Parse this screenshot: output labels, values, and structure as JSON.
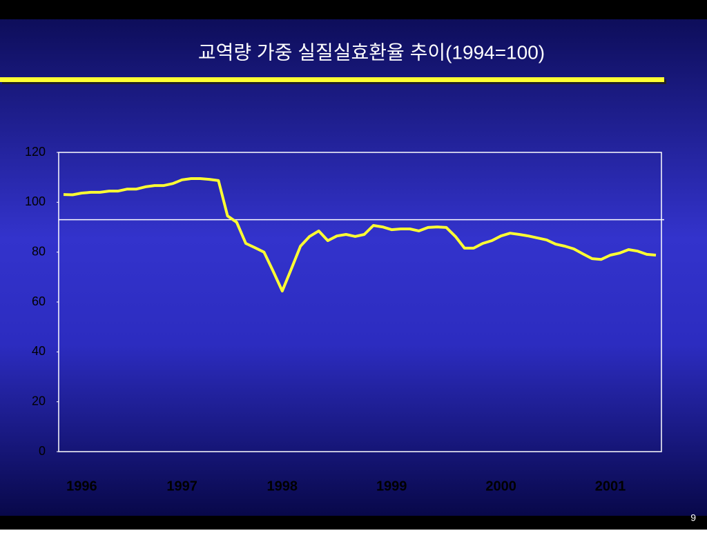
{
  "chart_data": {
    "type": "line",
    "title": "교역량 가중 실질실효환율 추이(1994=100)",
    "page_number": "9",
    "categories": [
      null,
      null,
      "1996",
      null,
      null,
      null,
      null,
      null,
      null,
      null,
      null,
      null,
      null,
      "1997",
      null,
      null,
      null,
      null,
      null,
      null,
      null,
      null,
      null,
      null,
      "1998",
      null,
      null,
      null,
      null,
      null,
      null,
      null,
      null,
      null,
      null,
      null,
      "1999",
      null,
      null,
      null,
      null,
      null,
      null,
      null,
      null,
      null,
      null,
      null,
      "2000",
      null,
      null,
      null,
      null,
      null,
      null,
      null,
      null,
      null,
      null,
      null,
      "2001",
      null,
      null,
      null,
      null,
      null
    ],
    "series": [
      {
        "color": "#ffff33",
        "values": [
          103.1,
          103,
          103.7,
          104,
          104,
          104.5,
          104.5,
          105.3,
          105.3,
          106.2,
          106.7,
          106.7,
          107.5,
          109,
          109.5,
          109.5,
          109.2,
          108.7,
          94.5,
          92,
          83.5,
          81.8,
          80,
          72.4,
          64.4,
          73.3,
          82.4,
          86.3,
          88.5,
          84.6,
          86.5,
          87.1,
          86.3,
          87.1,
          90.7,
          90.1,
          89,
          89.3,
          89.3,
          88.5,
          89.9,
          90.1,
          89.9,
          86.3,
          81.6,
          81.6,
          83.5,
          84.6,
          86.5,
          87.6,
          87.1,
          86.5,
          85.7,
          84.9,
          83.2,
          82.4,
          81.3,
          79.3,
          77.4,
          77.1,
          78.8,
          79.6,
          81,
          80.4,
          79.1,
          78.8
        ]
      }
    ],
    "reference_line": 93,
    "ylim": [
      0,
      120
    ],
    "yticks": [
      0,
      20,
      40,
      60,
      80,
      100,
      120
    ]
  }
}
